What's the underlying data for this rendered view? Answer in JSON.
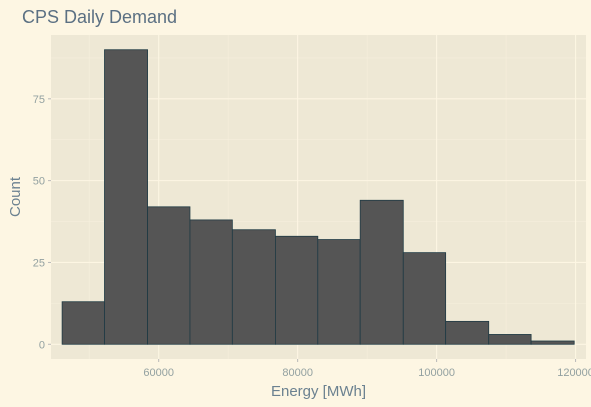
{
  "chart_data": {
    "type": "bar",
    "subtype": "histogram",
    "title": "CPS Daily Demand",
    "xlabel": "Energy [MWh]",
    "ylabel": "Count",
    "xlim": [
      44500,
      121500
    ],
    "ylim": [
      -4.5,
      94.5
    ],
    "xticks": [
      60000,
      80000,
      100000,
      120000
    ],
    "xtick_labels": [
      "60000",
      "80000",
      "100000",
      "120000"
    ],
    "yticks": [
      0,
      25,
      50,
      75
    ],
    "ytick_labels": [
      "0",
      "25",
      "50",
      "75"
    ],
    "bins": [
      {
        "x0": 46100,
        "x1": 52200,
        "count": 13
      },
      {
        "x0": 52200,
        "x1": 58400,
        "count": 90
      },
      {
        "x0": 58400,
        "x1": 64500,
        "count": 42
      },
      {
        "x0": 64500,
        "x1": 70600,
        "count": 38
      },
      {
        "x0": 70600,
        "x1": 76800,
        "count": 35
      },
      {
        "x0": 76800,
        "x1": 82900,
        "count": 33
      },
      {
        "x0": 82900,
        "x1": 89000,
        "count": 32
      },
      {
        "x0": 89000,
        "x1": 95200,
        "count": 44
      },
      {
        "x0": 95200,
        "x1": 101300,
        "count": 28
      },
      {
        "x0": 101300,
        "x1": 107500,
        "count": 7
      },
      {
        "x0": 107500,
        "x1": 113600,
        "count": 3
      },
      {
        "x0": 113600,
        "x1": 119800,
        "count": 1
      }
    ],
    "grid": true,
    "colors": {
      "page_background": "#fdf6e3",
      "panel_background": "#eee8d5",
      "bar_fill": "#555555",
      "bar_outline": "#1f3a44"
    }
  }
}
